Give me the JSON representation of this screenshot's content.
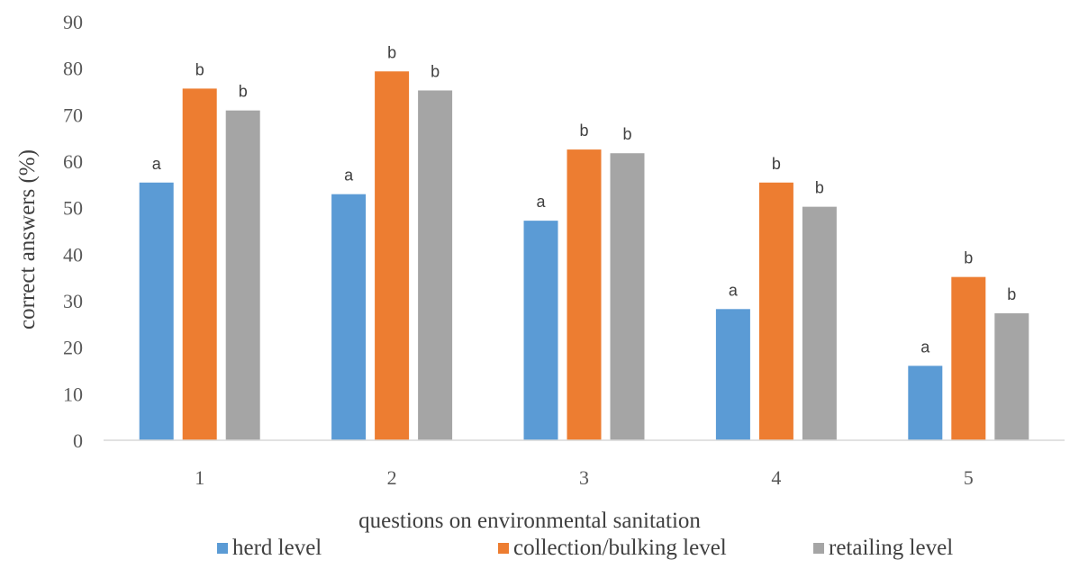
{
  "chart_data": {
    "type": "bar",
    "categories": [
      "1",
      "2",
      "3",
      "4",
      "5"
    ],
    "series": [
      {
        "name": "herd level",
        "color": "#5B9BD5",
        "values": [
          55.4,
          52.9,
          47.2,
          28.2,
          16.0
        ],
        "labels": [
          "a",
          "a",
          "a",
          "a",
          "a"
        ]
      },
      {
        "name": "collection/bulking level",
        "color": "#ED7D31",
        "values": [
          75.6,
          79.3,
          62.5,
          55.4,
          35.1
        ],
        "labels": [
          "b",
          "b",
          "b",
          "b",
          "b"
        ]
      },
      {
        "name": "retailing level",
        "color": "#A5A5A5",
        "values": [
          70.9,
          75.2,
          61.7,
          50.2,
          27.3
        ],
        "labels": [
          "b",
          "b",
          "b",
          "b",
          "b"
        ]
      }
    ],
    "xlabel": "questions on environmental sanitation",
    "ylabel": "correct answers (%)",
    "ylim": [
      0,
      90
    ],
    "yticks": [
      "0",
      "10",
      "20",
      "30",
      "40",
      "50",
      "60",
      "70",
      "80",
      "90"
    ],
    "grid": false,
    "legend_position": "bottom"
  }
}
